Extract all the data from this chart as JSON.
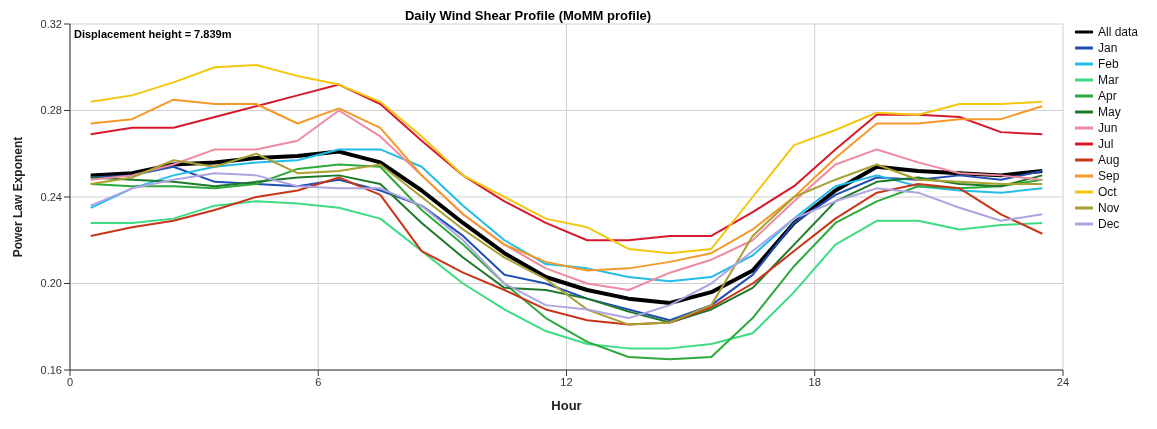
{
  "chart_data": {
    "type": "line",
    "title": "Daily Wind  Shear Profile (MoMM profile)",
    "xlabel": "Hour",
    "ylabel": "Power Law Exponent",
    "annotations": [
      "Displacement height = 7.839m"
    ],
    "x": [
      0.5,
      1.5,
      2.5,
      3.5,
      4.5,
      5.5,
      6.5,
      7.5,
      8.5,
      9.5,
      10.5,
      11.5,
      12.5,
      13.5,
      14.5,
      15.5,
      16.5,
      17.5,
      18.5,
      19.5,
      20.5,
      21.5,
      22.5,
      23.5
    ],
    "xlim": [
      0,
      24
    ],
    "xticks": [
      0,
      6,
      12,
      18,
      24
    ],
    "ylim": [
      0.16,
      0.32
    ],
    "yticks": [
      0.16,
      {
        "value": 0.2,
        "label": "0.20"
      },
      0.24,
      0.28,
      0.32
    ],
    "grid": true,
    "legend": "right",
    "marker": "none",
    "line_style": "solid",
    "series": [
      {
        "name": "All data",
        "color": "#000000",
        "values": [
          0.25,
          0.251,
          0.255,
          0.256,
          0.258,
          0.259,
          0.261,
          0.256,
          0.243,
          0.228,
          0.214,
          0.203,
          0.197,
          0.193,
          0.191,
          0.196,
          0.206,
          0.228,
          0.243,
          0.254,
          0.252,
          0.251,
          0.25,
          0.252
        ]
      },
      {
        "name": "Jan",
        "color": "#1f4fb4",
        "values": [
          0.249,
          0.25,
          0.254,
          0.247,
          0.246,
          0.245,
          0.248,
          0.243,
          0.236,
          0.222,
          0.204,
          0.2,
          0.193,
          0.188,
          0.183,
          0.19,
          0.204,
          0.228,
          0.241,
          0.249,
          0.248,
          0.25,
          0.248,
          0.252
        ]
      },
      {
        "name": "Feb",
        "color": "#22bce6",
        "values": [
          0.235,
          0.244,
          0.25,
          0.254,
          0.256,
          0.257,
          0.262,
          0.262,
          0.254,
          0.236,
          0.22,
          0.209,
          0.207,
          0.203,
          0.201,
          0.203,
          0.213,
          0.23,
          0.245,
          0.25,
          0.245,
          0.243,
          0.242,
          0.244
        ]
      },
      {
        "name": "Mar",
        "color": "#3ddc84",
        "values": [
          0.228,
          0.228,
          0.23,
          0.236,
          0.238,
          0.237,
          0.235,
          0.23,
          0.215,
          0.2,
          0.188,
          0.178,
          0.172,
          0.17,
          0.17,
          0.172,
          0.177,
          0.196,
          0.218,
          0.229,
          0.229,
          0.225,
          0.227,
          0.228
        ]
      },
      {
        "name": "Apr",
        "color": "#2eaa3c",
        "values": [
          0.246,
          0.245,
          0.245,
          0.244,
          0.246,
          0.253,
          0.255,
          0.254,
          0.234,
          0.218,
          0.2,
          0.184,
          0.173,
          0.166,
          0.165,
          0.166,
          0.184,
          0.208,
          0.228,
          0.238,
          0.245,
          0.244,
          0.245,
          0.248
        ]
      },
      {
        "name": "May",
        "color": "#1e7a2a",
        "values": [
          0.249,
          0.248,
          0.247,
          0.245,
          0.247,
          0.249,
          0.25,
          0.246,
          0.228,
          0.212,
          0.198,
          0.197,
          0.193,
          0.187,
          0.182,
          0.188,
          0.198,
          0.218,
          0.238,
          0.247,
          0.249,
          0.246,
          0.245,
          0.25
        ]
      },
      {
        "name": "Jun",
        "color": "#f08aa0",
        "values": [
          0.248,
          0.25,
          0.255,
          0.262,
          0.262,
          0.266,
          0.28,
          0.268,
          0.25,
          0.232,
          0.218,
          0.207,
          0.2,
          0.197,
          0.205,
          0.211,
          0.22,
          0.238,
          0.255,
          0.262,
          0.256,
          0.251,
          0.25,
          0.248
        ]
      },
      {
        "name": "Jul",
        "color": "#d7192c",
        "values": [
          0.269,
          0.272,
          0.272,
          0.277,
          0.282,
          0.287,
          0.292,
          0.283,
          0.266,
          0.25,
          0.238,
          0.228,
          0.22,
          0.22,
          0.222,
          0.222,
          0.233,
          0.245,
          0.262,
          0.278,
          0.278,
          0.277,
          0.27,
          0.269
        ]
      },
      {
        "name": "Aug",
        "color": "#c8361a",
        "values": [
          0.222,
          0.226,
          0.229,
          0.234,
          0.24,
          0.243,
          0.249,
          0.241,
          0.215,
          0.205,
          0.197,
          0.188,
          0.183,
          0.181,
          0.182,
          0.189,
          0.2,
          0.215,
          0.23,
          0.242,
          0.246,
          0.244,
          0.232,
          0.223
        ]
      },
      {
        "name": "Sep",
        "color": "#f59a2a",
        "values": [
          0.274,
          0.276,
          0.285,
          0.283,
          0.283,
          0.274,
          0.281,
          0.272,
          0.25,
          0.232,
          0.218,
          0.21,
          0.206,
          0.207,
          0.21,
          0.214,
          0.225,
          0.24,
          0.258,
          0.274,
          0.274,
          0.276,
          0.276,
          0.282
        ]
      },
      {
        "name": "Oct",
        "color": "#f2c80f",
        "values": [
          0.284,
          0.287,
          0.293,
          0.3,
          0.301,
          0.296,
          0.292,
          0.284,
          0.268,
          0.25,
          0.24,
          0.23,
          0.226,
          0.216,
          0.214,
          0.216,
          0.24,
          0.264,
          0.271,
          0.279,
          0.278,
          0.283,
          0.283,
          0.284
        ]
      },
      {
        "name": "Nov",
        "color": "#a8a030",
        "values": [
          0.246,
          0.249,
          0.257,
          0.254,
          0.26,
          0.251,
          0.252,
          0.255,
          0.24,
          0.225,
          0.212,
          0.202,
          0.188,
          0.181,
          0.182,
          0.19,
          0.222,
          0.24,
          0.248,
          0.255,
          0.248,
          0.247,
          0.246,
          0.246
        ]
      },
      {
        "name": "Dec",
        "color": "#b0a4e0",
        "values": [
          0.236,
          0.244,
          0.248,
          0.251,
          0.25,
          0.245,
          0.244,
          0.244,
          0.236,
          0.22,
          0.2,
          0.19,
          0.188,
          0.184,
          0.19,
          0.2,
          0.215,
          0.23,
          0.238,
          0.244,
          0.242,
          0.235,
          0.229,
          0.232
        ]
      }
    ]
  }
}
